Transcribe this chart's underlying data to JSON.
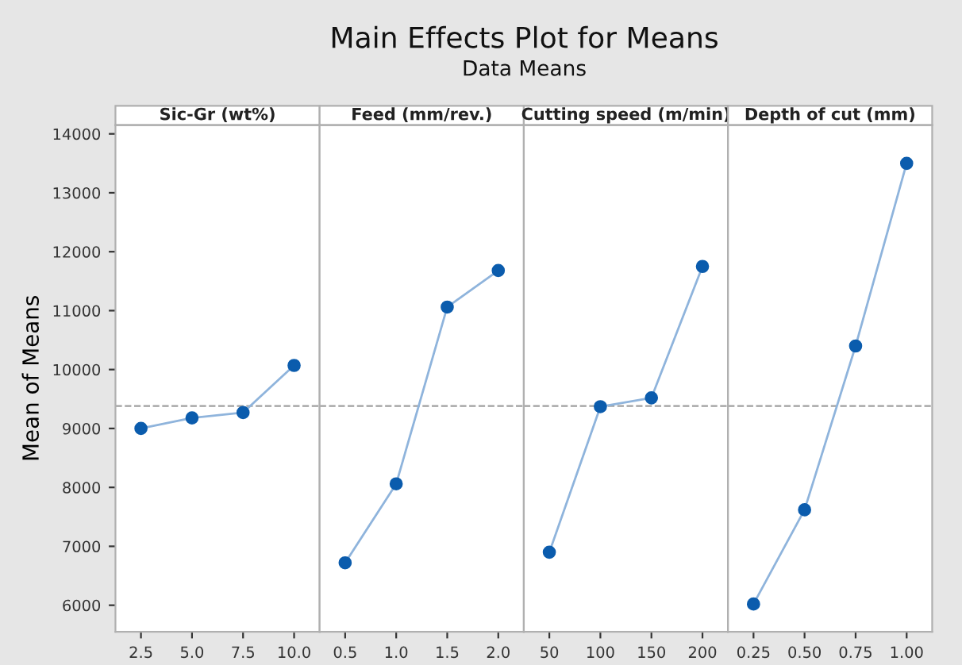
{
  "chart_data": [
    {
      "type": "line",
      "title": "Sic-Gr (wt%)",
      "ylabel": "Mean of Means",
      "annotations": [
        "Main Effects Plot for Means",
        "Data Means"
      ],
      "categories": [
        "2.5",
        "5.0",
        "7.5",
        "10.0"
      ],
      "series": [
        {
          "color": "#0b5cad",
          "values": [
            9000,
            9180,
            9270,
            10070
          ]
        }
      ],
      "ylim": [
        5550,
        14150
      ],
      "yticks": [
        6000,
        7000,
        8000,
        9000,
        10000,
        11000,
        12000,
        13000,
        14000
      ],
      "ref_lines": [
        {
          "axis": "y",
          "value": 9380,
          "color": "#a0a0a0",
          "line_style": "dashed"
        }
      ],
      "marker": "circle",
      "grid": false,
      "legend": false
    },
    {
      "type": "line",
      "title": "Feed (mm/rev.)",
      "categories": [
        "0.5",
        "1.0",
        "1.5",
        "2.0"
      ],
      "series": [
        {
          "color": "#0b5cad",
          "values": [
            6720,
            8060,
            11060,
            11680
          ]
        }
      ],
      "ylim": [
        5550,
        14150
      ],
      "tick_labels": "x",
      "ref_lines": [
        {
          "axis": "y",
          "value": 9380,
          "color": "#a0a0a0",
          "line_style": "dashed"
        }
      ],
      "marker": "circle",
      "grid": false,
      "legend": false
    },
    {
      "type": "line",
      "title": "Cutting speed (m/min)",
      "categories": [
        "50",
        "100",
        "150",
        "200"
      ],
      "series": [
        {
          "color": "#0b5cad",
          "values": [
            6900,
            9370,
            9520,
            11750
          ]
        }
      ],
      "ylim": [
        5550,
        14150
      ],
      "tick_labels": "x",
      "ref_lines": [
        {
          "axis": "y",
          "value": 9380,
          "color": "#a0a0a0",
          "line_style": "dashed"
        }
      ],
      "marker": "circle",
      "grid": false,
      "legend": false
    },
    {
      "type": "line",
      "title": "Depth of cut (mm)",
      "categories": [
        "0.25",
        "0.50",
        "0.75",
        "1.00"
      ],
      "series": [
        {
          "color": "#0b5cad",
          "values": [
            6020,
            7620,
            10400,
            13500
          ]
        }
      ],
      "ylim": [
        5550,
        14150
      ],
      "tick_labels": "x",
      "ref_lines": [
        {
          "axis": "y",
          "value": 9380,
          "color": "#a0a0a0",
          "line_style": "dashed"
        }
      ],
      "marker": "circle",
      "grid": false,
      "legend": false
    }
  ]
}
